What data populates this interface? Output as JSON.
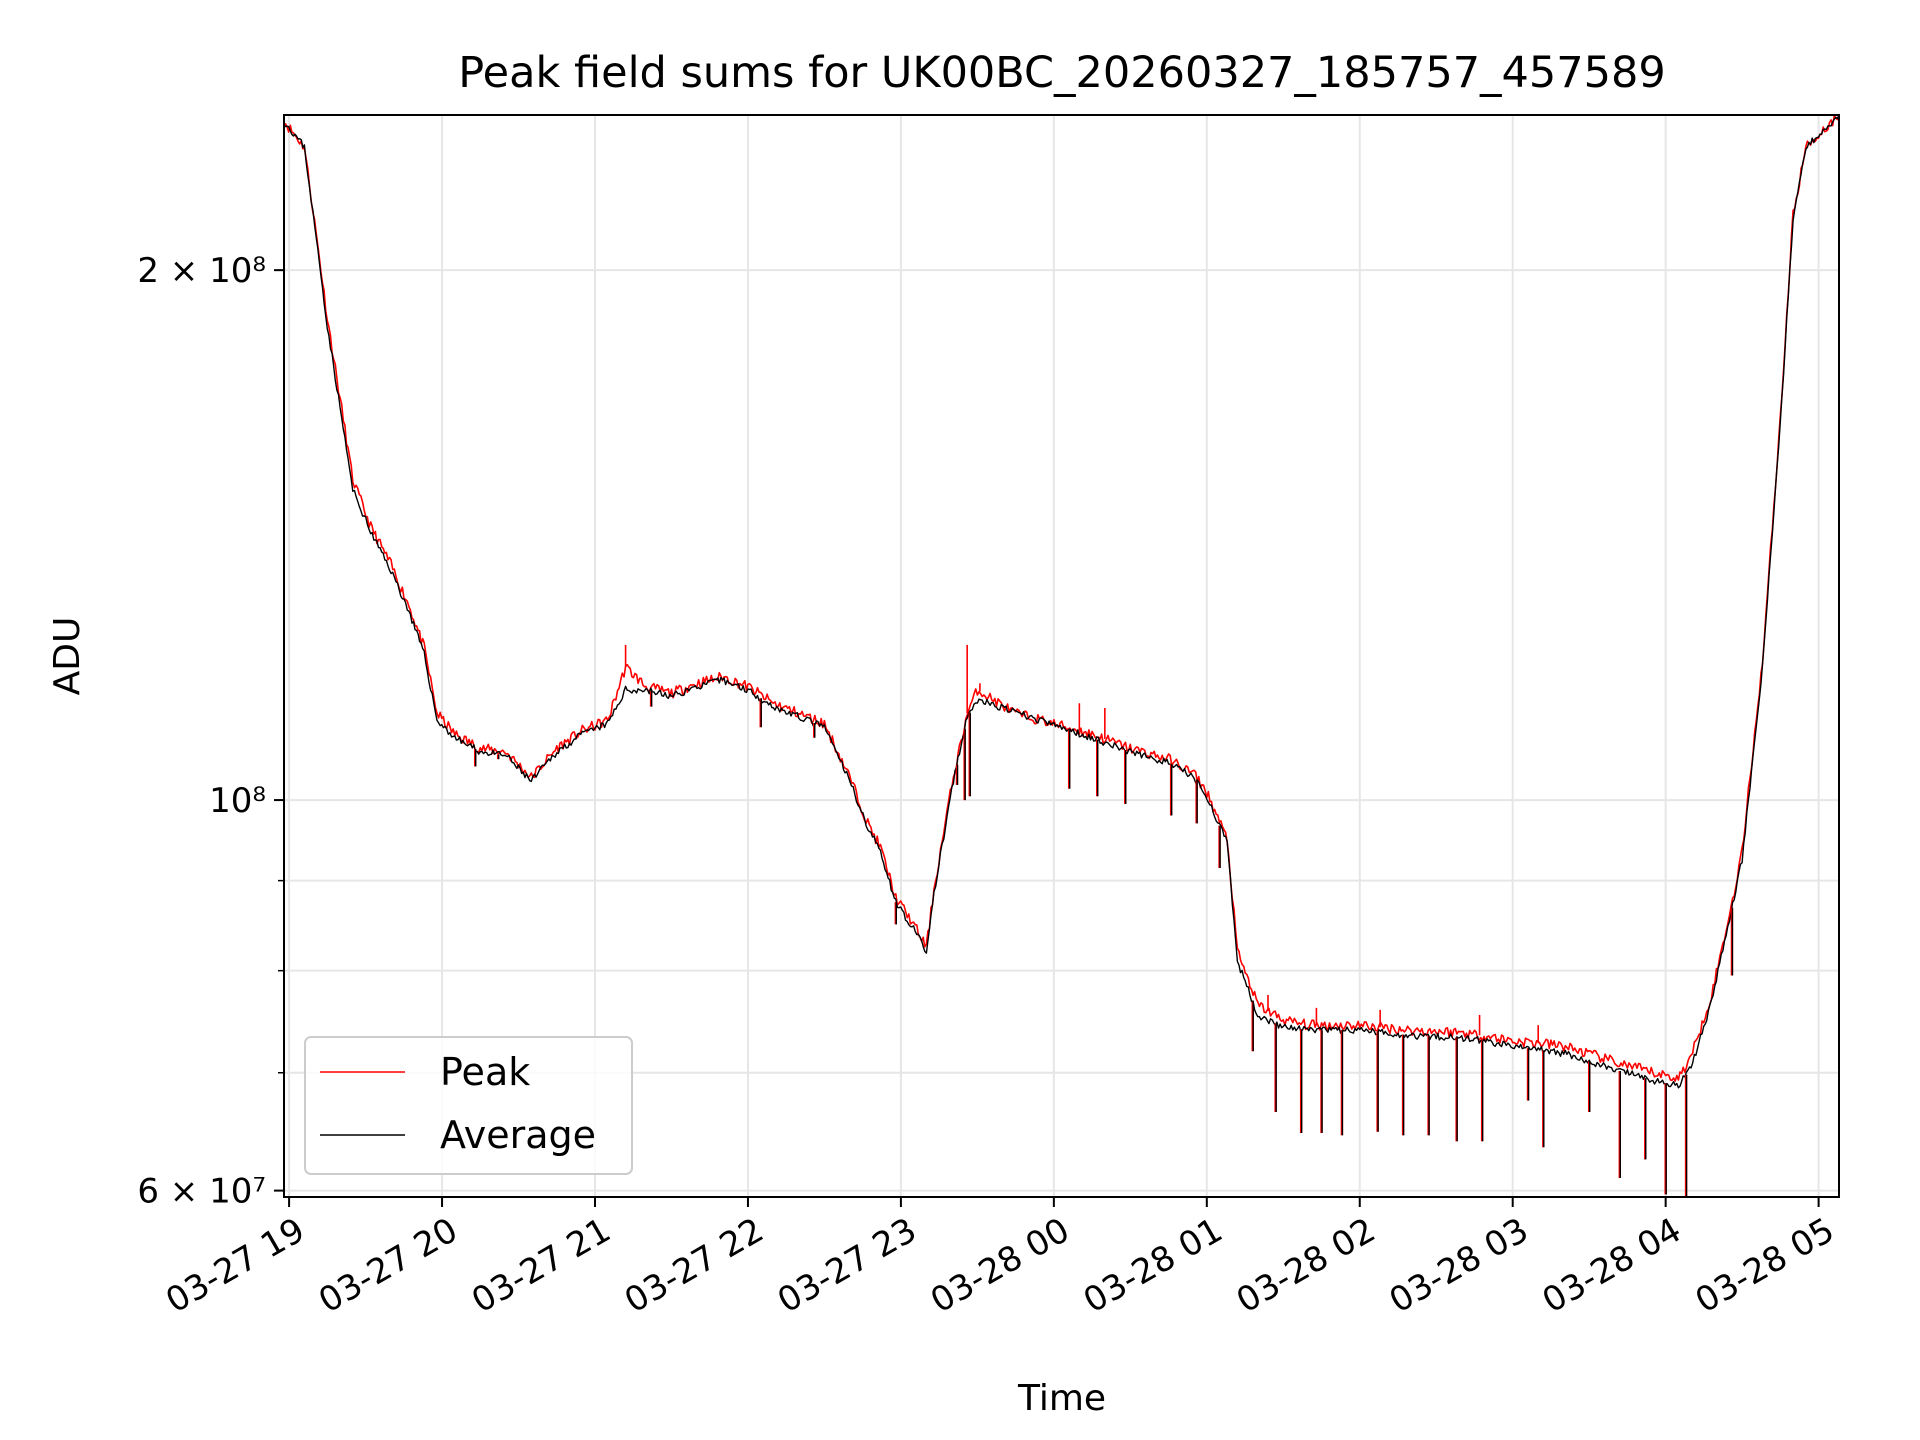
{
  "chart_data": {
    "type": "line",
    "title": "Peak field sums for UK00BC_20260327_185757_457589",
    "xlabel": "Time",
    "ylabel": "ADU",
    "yscale": "log",
    "grid": true,
    "legend_position": "lower-left",
    "xlim": [
      "2026-03-27 18:58",
      "2026-03-28 05:08"
    ],
    "ylim": [
      59500000,
      245000000
    ],
    "x_ticks": [
      {
        "value": "2026-03-27 19:00",
        "label": "03-27 19"
      },
      {
        "value": "2026-03-27 20:00",
        "label": "03-27 20"
      },
      {
        "value": "2026-03-27 21:00",
        "label": "03-27 21"
      },
      {
        "value": "2026-03-27 22:00",
        "label": "03-27 22"
      },
      {
        "value": "2026-03-27 23:00",
        "label": "03-27 23"
      },
      {
        "value": "2026-03-28 00:00",
        "label": "03-28 00"
      },
      {
        "value": "2026-03-28 01:00",
        "label": "03-28 01"
      },
      {
        "value": "2026-03-28 02:00",
        "label": "03-28 02"
      },
      {
        "value": "2026-03-28 03:00",
        "label": "03-28 03"
      },
      {
        "value": "2026-03-28 04:00",
        "label": "03-28 04"
      },
      {
        "value": "2026-03-28 05:00",
        "label": "03-28 05"
      }
    ],
    "y_ticks_major": [
      {
        "value": 60000000,
        "label": "6 × 10⁷"
      },
      {
        "value": 100000000,
        "label": "10⁸"
      },
      {
        "value": 200000000,
        "label": "2 × 10⁸"
      }
    ],
    "y_ticks_minor": [
      70000000,
      80000000,
      90000000
    ],
    "colors": {
      "peak": "#ff0000",
      "average": "#000000",
      "grid": "#e6e6e6"
    },
    "series": [
      {
        "name": "Peak",
        "color": "#ff0000",
        "points": [
          [
            "2026-03-27 18:58",
            243000000
          ],
          [
            "2026-03-27 19:06",
            235000000
          ],
          [
            "2026-03-27 19:10",
            213000000
          ],
          [
            "2026-03-27 19:15",
            188000000
          ],
          [
            "2026-03-27 19:20",
            169000000
          ],
          [
            "2026-03-27 19:25",
            152000000
          ],
          [
            "2026-03-27 19:32",
            143000000
          ],
          [
            "2026-03-27 19:40",
            136000000
          ],
          [
            "2026-03-27 19:47",
            129000000
          ],
          [
            "2026-03-27 19:53",
            122000000
          ],
          [
            "2026-03-27 19:58",
            112000000
          ],
          [
            "2026-03-27 20:05",
            109000000
          ],
          [
            "2026-03-27 20:15",
            107000000
          ],
          [
            "2026-03-27 20:25",
            106500000
          ],
          [
            "2026-03-27 20:35",
            103000000
          ],
          [
            "2026-03-27 20:45",
            107000000
          ],
          [
            "2026-03-27 20:55",
            109500000
          ],
          [
            "2026-03-27 21:05",
            111000000
          ],
          [
            "2026-03-27 21:12",
            119000000
          ],
          [
            "2026-03-27 21:20",
            116000000
          ],
          [
            "2026-03-27 21:30",
            115000000
          ],
          [
            "2026-03-27 21:40",
            116500000
          ],
          [
            "2026-03-27 21:50",
            117500000
          ],
          [
            "2026-03-27 22:00",
            116000000
          ],
          [
            "2026-03-27 22:10",
            113500000
          ],
          [
            "2026-03-27 22:20",
            112000000
          ],
          [
            "2026-03-27 22:30",
            110500000
          ],
          [
            "2026-03-27 22:40",
            103000000
          ],
          [
            "2026-03-27 22:47",
            97000000
          ],
          [
            "2026-03-27 22:52",
            94000000
          ],
          [
            "2026-03-27 22:58",
            88000000
          ],
          [
            "2026-03-27 23:05",
            85000000
          ],
          [
            "2026-03-27 23:10",
            82500000
          ],
          [
            "2026-03-27 23:13",
            89000000
          ],
          [
            "2026-03-27 23:20",
            102000000
          ],
          [
            "2026-03-27 23:26",
            112000000
          ],
          [
            "2026-03-27 23:30",
            115500000
          ],
          [
            "2026-03-27 23:45",
            112000000
          ],
          [
            "2026-03-28 00:00",
            110500000
          ],
          [
            "2026-03-28 00:15",
            109000000
          ],
          [
            "2026-03-28 00:30",
            107000000
          ],
          [
            "2026-03-28 00:45",
            105500000
          ],
          [
            "2026-03-28 00:55",
            103500000
          ],
          [
            "2026-03-28 01:00",
            101000000
          ],
          [
            "2026-03-28 01:08",
            95000000
          ],
          [
            "2026-03-28 01:12",
            82000000
          ],
          [
            "2026-03-28 01:20",
            76500000
          ],
          [
            "2026-03-28 01:30",
            75000000
          ],
          [
            "2026-03-28 01:40",
            74500000
          ],
          [
            "2026-03-28 02:00",
            74500000
          ],
          [
            "2026-03-28 02:20",
            74000000
          ],
          [
            "2026-03-28 02:40",
            73800000
          ],
          [
            "2026-03-28 03:00",
            73000000
          ],
          [
            "2026-03-28 03:20",
            72500000
          ],
          [
            "2026-03-28 03:40",
            71000000
          ],
          [
            "2026-03-28 03:55",
            70000000
          ],
          [
            "2026-03-28 04:05",
            69500000
          ],
          [
            "2026-03-28 04:10",
            71500000
          ],
          [
            "2026-03-28 04:18",
            77500000
          ],
          [
            "2026-03-28 04:25",
            86000000
          ],
          [
            "2026-03-28 04:30",
            93500000
          ],
          [
            "2026-03-28 04:38",
            120000000
          ],
          [
            "2026-03-28 04:45",
            165000000
          ],
          [
            "2026-03-28 04:50",
            215000000
          ],
          [
            "2026-03-28 04:55",
            235000000
          ],
          [
            "2026-03-28 05:08",
            245000000
          ]
        ]
      },
      {
        "name": "Average",
        "color": "#000000",
        "points": [
          [
            "2026-03-27 18:58",
            243000000
          ],
          [
            "2026-03-27 19:06",
            235000000
          ],
          [
            "2026-03-27 19:10",
            212000000
          ],
          [
            "2026-03-27 19:15",
            186000000
          ],
          [
            "2026-03-27 19:20",
            167000000
          ],
          [
            "2026-03-27 19:25",
            150000000
          ],
          [
            "2026-03-27 19:32",
            142000000
          ],
          [
            "2026-03-27 19:40",
            135000000
          ],
          [
            "2026-03-27 19:47",
            128000000
          ],
          [
            "2026-03-27 19:53",
            121000000
          ],
          [
            "2026-03-27 19:58",
            111000000
          ],
          [
            "2026-03-27 20:05",
            108500000
          ],
          [
            "2026-03-27 20:15",
            106500000
          ],
          [
            "2026-03-27 20:25",
            106000000
          ],
          [
            "2026-03-27 20:35",
            102500000
          ],
          [
            "2026-03-27 20:45",
            106500000
          ],
          [
            "2026-03-27 20:55",
            109000000
          ],
          [
            "2026-03-27 21:05",
            110500000
          ],
          [
            "2026-03-27 21:12",
            115500000
          ],
          [
            "2026-03-27 21:20",
            115500000
          ],
          [
            "2026-03-27 21:30",
            114500000
          ],
          [
            "2026-03-27 21:40",
            116000000
          ],
          [
            "2026-03-27 21:50",
            117000000
          ],
          [
            "2026-03-27 22:00",
            115500000
          ],
          [
            "2026-03-27 22:10",
            113000000
          ],
          [
            "2026-03-27 22:20",
            111500000
          ],
          [
            "2026-03-27 22:30",
            110000000
          ],
          [
            "2026-03-27 22:40",
            102500000
          ],
          [
            "2026-03-27 22:47",
            96500000
          ],
          [
            "2026-03-27 22:52",
            93500000
          ],
          [
            "2026-03-27 22:58",
            87500000
          ],
          [
            "2026-03-27 23:05",
            84500000
          ],
          [
            "2026-03-27 23:10",
            82000000
          ],
          [
            "2026-03-27 23:13",
            88500000
          ],
          [
            "2026-03-27 23:20",
            101500000
          ],
          [
            "2026-03-27 23:26",
            111500000
          ],
          [
            "2026-03-27 23:30",
            114000000
          ],
          [
            "2026-03-28 00:15",
            108500000
          ],
          [
            "2026-03-28 00:30",
            106500000
          ],
          [
            "2026-03-28 00:45",
            105000000
          ],
          [
            "2026-03-28 00:55",
            103000000
          ],
          [
            "2026-03-28 01:00",
            100500000
          ],
          [
            "2026-03-28 01:08",
            94500000
          ],
          [
            "2026-03-28 01:12",
            81000000
          ],
          [
            "2026-03-28 01:20",
            75500000
          ],
          [
            "2026-03-28 01:30",
            74300000
          ],
          [
            "2026-03-28 01:40",
            74000000
          ],
          [
            "2026-03-28 02:00",
            74000000
          ],
          [
            "2026-03-28 02:20",
            73500000
          ],
          [
            "2026-03-28 02:40",
            73300000
          ],
          [
            "2026-03-28 03:00",
            72500000
          ],
          [
            "2026-03-28 03:20",
            71800000
          ],
          [
            "2026-03-28 03:40",
            70300000
          ],
          [
            "2026-03-28 03:55",
            69300000
          ],
          [
            "2026-03-28 04:05",
            68800000
          ],
          [
            "2026-03-28 04:10",
            70500000
          ],
          [
            "2026-03-28 04:18",
            76800000
          ],
          [
            "2026-03-28 04:25",
            85500000
          ],
          [
            "2026-03-28 04:30",
            92500000
          ],
          [
            "2026-03-28 04:38",
            119000000
          ],
          [
            "2026-03-28 04:45",
            164000000
          ],
          [
            "2026-03-28 04:50",
            214000000
          ],
          [
            "2026-03-28 04:55",
            235000000
          ],
          [
            "2026-03-28 05:08",
            245000000
          ]
        ]
      }
    ],
    "dips": [
      {
        "time": "2026-03-27 20:13",
        "value": 104500000
      },
      {
        "time": "2026-03-27 20:22",
        "value": 105500000
      },
      {
        "time": "2026-03-27 21:22",
        "value": 113000000
      },
      {
        "time": "2026-03-27 22:05",
        "value": 110000000
      },
      {
        "time": "2026-03-27 22:26",
        "value": 108500000
      },
      {
        "time": "2026-03-27 22:58",
        "value": 85000000
      },
      {
        "time": "2026-03-27 23:22",
        "value": 102000000
      },
      {
        "time": "2026-03-27 23:25",
        "value": 100000000
      },
      {
        "time": "2026-03-27 23:27",
        "value": 100500000
      },
      {
        "time": "2026-03-28 00:06",
        "value": 101500000
      },
      {
        "time": "2026-03-28 00:17",
        "value": 100500000
      },
      {
        "time": "2026-03-28 00:28",
        "value": 99500000
      },
      {
        "time": "2026-03-28 00:46",
        "value": 98000000
      },
      {
        "time": "2026-03-28 00:56",
        "value": 97000000
      },
      {
        "time": "2026-03-28 01:05",
        "value": 91500000
      },
      {
        "time": "2026-03-28 01:18",
        "value": 72000000
      },
      {
        "time": "2026-03-28 01:27",
        "value": 66500000
      },
      {
        "time": "2026-03-28 01:37",
        "value": 64700000
      },
      {
        "time": "2026-03-28 01:45",
        "value": 64700000
      },
      {
        "time": "2026-03-28 01:53",
        "value": 64500000
      },
      {
        "time": "2026-03-28 02:07",
        "value": 64800000
      },
      {
        "time": "2026-03-28 02:17",
        "value": 64500000
      },
      {
        "time": "2026-03-28 02:27",
        "value": 64500000
      },
      {
        "time": "2026-03-28 02:38",
        "value": 64000000
      },
      {
        "time": "2026-03-28 02:48",
        "value": 64000000
      },
      {
        "time": "2026-03-28 03:06",
        "value": 67500000
      },
      {
        "time": "2026-03-28 03:12",
        "value": 63500000
      },
      {
        "time": "2026-03-28 03:30",
        "value": 66500000
      },
      {
        "time": "2026-03-28 03:42",
        "value": 61000000
      },
      {
        "time": "2026-03-28 03:52",
        "value": 62500000
      },
      {
        "time": "2026-03-28 04:00",
        "value": 59700000
      },
      {
        "time": "2026-03-28 04:08",
        "value": 59500000
      },
      {
        "time": "2026-03-28 04:26",
        "value": 79500000
      }
    ],
    "spikes": [
      {
        "time": "2026-03-27 21:12",
        "value": 122500000
      },
      {
        "time": "2026-03-27 23:26",
        "value": 122500000
      },
      {
        "time": "2026-03-27 23:31",
        "value": 116500000
      },
      {
        "time": "2026-03-28 00:10",
        "value": 113500000
      },
      {
        "time": "2026-03-28 00:20",
        "value": 112800000
      },
      {
        "time": "2026-03-28 01:24",
        "value": 77500000
      },
      {
        "time": "2026-03-28 01:43",
        "value": 76200000
      },
      {
        "time": "2026-03-28 02:08",
        "value": 76000000
      },
      {
        "time": "2026-03-28 02:47",
        "value": 75500000
      },
      {
        "time": "2026-03-28 03:10",
        "value": 74500000
      }
    ]
  }
}
